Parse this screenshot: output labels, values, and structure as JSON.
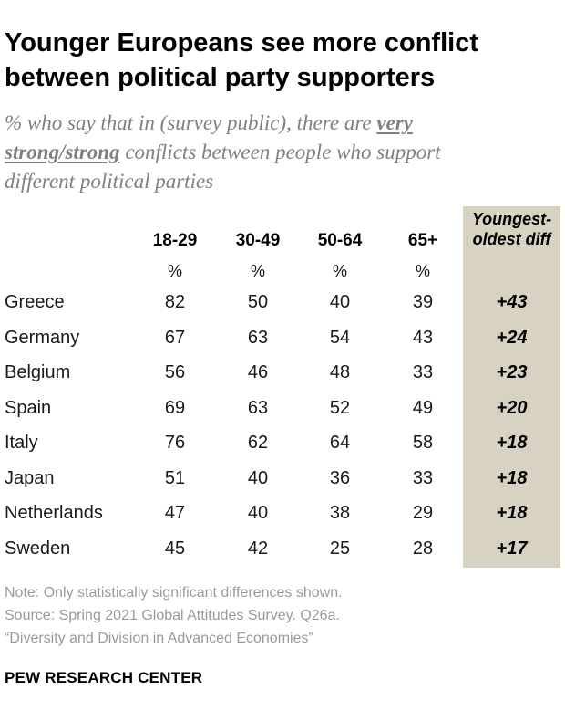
{
  "header": {
    "title_line1": "Younger Europeans see more conflict",
    "title_line2": "between political party supporters",
    "subtitle_part1": "% who say that in (survey public), there are ",
    "subtitle_emph_line1": "very",
    "subtitle_emph_line2": "strong/strong",
    "subtitle_part2": " conflicts between people who support",
    "subtitle_line3": "different political parties"
  },
  "table": {
    "diff_header_line1": "Youngest-",
    "diff_header_line2": "oldest diff",
    "columns": [
      "18-29",
      "30-49",
      "50-64",
      "65+"
    ],
    "unit": "%"
  },
  "chart_data": {
    "type": "table",
    "columns": [
      "18-29",
      "30-49",
      "50-64",
      "65+",
      "Youngest-oldest diff"
    ],
    "rows": [
      {
        "country": "Greece",
        "values": [
          "82",
          "50",
          "40",
          "39"
        ],
        "diff": "+43"
      },
      {
        "country": "Germany",
        "values": [
          "67",
          "63",
          "54",
          "43"
        ],
        "diff": "+24"
      },
      {
        "country": "Belgium",
        "values": [
          "56",
          "46",
          "48",
          "33"
        ],
        "diff": "+23"
      },
      {
        "country": "Spain",
        "values": [
          "69",
          "63",
          "52",
          "49"
        ],
        "diff": "+20"
      },
      {
        "country": "Italy",
        "values": [
          "76",
          "62",
          "64",
          "58"
        ],
        "diff": "+18"
      },
      {
        "country": "Japan",
        "values": [
          "51",
          "40",
          "36",
          "33"
        ],
        "diff": "+18"
      },
      {
        "country": "Netherlands",
        "values": [
          "47",
          "40",
          "38",
          "29"
        ],
        "diff": "+18"
      },
      {
        "country": "Sweden",
        "values": [
          "45",
          "42",
          "25",
          "28"
        ],
        "diff": "+17"
      }
    ],
    "highlight_color": "#d8d2c3"
  },
  "footer": {
    "note": "Note: Only statistically significant differences shown.",
    "source": "Source: Spring 2021 Global Attitudes Survey. Q26a.",
    "report": "“Diversity and Division in Advanced Economies”",
    "brand": "PEW RESEARCH CENTER"
  }
}
